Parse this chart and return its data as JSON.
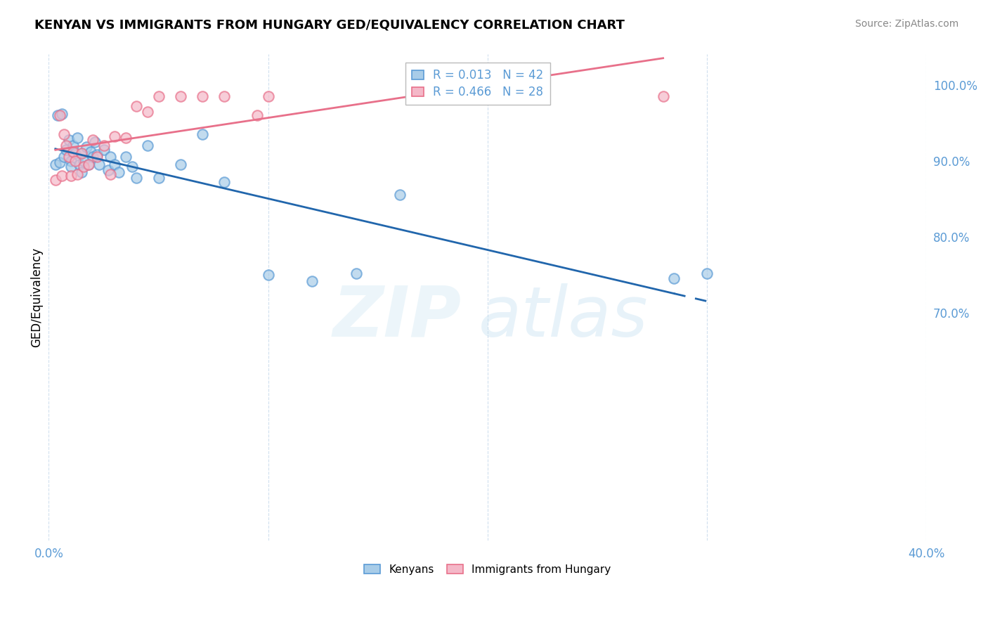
{
  "title": "KENYAN VS IMMIGRANTS FROM HUNGARY GED/EQUIVALENCY CORRELATION CHART",
  "source": "Source: ZipAtlas.com",
  "ylabel": "GED/Equivalency",
  "xlim": [
    0.0,
    0.4
  ],
  "ylim": [
    0.4,
    1.04
  ],
  "xtick_vals": [
    0.0,
    0.1,
    0.2,
    0.3,
    0.4
  ],
  "xtick_labels": [
    "0.0%",
    "",
    "",
    "",
    "40.0%"
  ],
  "ytick_vals": [
    1.0,
    0.9,
    0.8,
    0.7
  ],
  "ytick_labels": [
    "100.0%",
    "90.0%",
    "80.0%",
    "70.0%"
  ],
  "blue_R": 0.013,
  "blue_N": 42,
  "pink_R": 0.466,
  "pink_N": 28,
  "blue_face_color": "#a8cce8",
  "blue_edge_color": "#5b9bd5",
  "pink_face_color": "#f4b8c8",
  "pink_edge_color": "#e8708a",
  "blue_line_color": "#2166ac",
  "pink_line_color": "#e8708a",
  "right_label_color": "#5b9bd5",
  "bottom_label_color": "#5b9bd5",
  "legend_blue_label": "Kenyans",
  "legend_pink_label": "Immigrants from Hungary",
  "blue_scatter_x": [
    0.003,
    0.004,
    0.005,
    0.006,
    0.007,
    0.008,
    0.009,
    0.01,
    0.01,
    0.011,
    0.012,
    0.013,
    0.014,
    0.015,
    0.015,
    0.016,
    0.017,
    0.018,
    0.019,
    0.02,
    0.021,
    0.022,
    0.023,
    0.025,
    0.027,
    0.028,
    0.03,
    0.032,
    0.035,
    0.038,
    0.04,
    0.045,
    0.05,
    0.06,
    0.07,
    0.08,
    0.1,
    0.12,
    0.14,
    0.16,
    0.285,
    0.3
  ],
  "blue_scatter_y": [
    0.895,
    0.96,
    0.898,
    0.962,
    0.905,
    0.915,
    0.928,
    0.9,
    0.892,
    0.92,
    0.91,
    0.93,
    0.895,
    0.91,
    0.885,
    0.9,
    0.918,
    0.895,
    0.912,
    0.905,
    0.925,
    0.908,
    0.895,
    0.915,
    0.888,
    0.905,
    0.895,
    0.885,
    0.905,
    0.892,
    0.878,
    0.92,
    0.878,
    0.895,
    0.935,
    0.872,
    0.75,
    0.742,
    0.752,
    0.855,
    0.745,
    0.752
  ],
  "pink_scatter_x": [
    0.003,
    0.005,
    0.006,
    0.007,
    0.008,
    0.009,
    0.01,
    0.011,
    0.012,
    0.013,
    0.015,
    0.016,
    0.018,
    0.02,
    0.022,
    0.025,
    0.028,
    0.03,
    0.035,
    0.04,
    0.045,
    0.05,
    0.06,
    0.07,
    0.08,
    0.095,
    0.1,
    0.28
  ],
  "pink_scatter_y": [
    0.875,
    0.96,
    0.88,
    0.935,
    0.92,
    0.905,
    0.88,
    0.912,
    0.9,
    0.882,
    0.91,
    0.892,
    0.895,
    0.928,
    0.905,
    0.92,
    0.882,
    0.932,
    0.93,
    0.972,
    0.965,
    0.985,
    0.985,
    0.985,
    0.985,
    0.96,
    0.985,
    0.985
  ],
  "blue_trend_solid_end": 0.285,
  "blue_trend_start": 0.003,
  "blue_trend_end": 0.3,
  "pink_trend_start": 0.003,
  "pink_trend_end": 0.28
}
